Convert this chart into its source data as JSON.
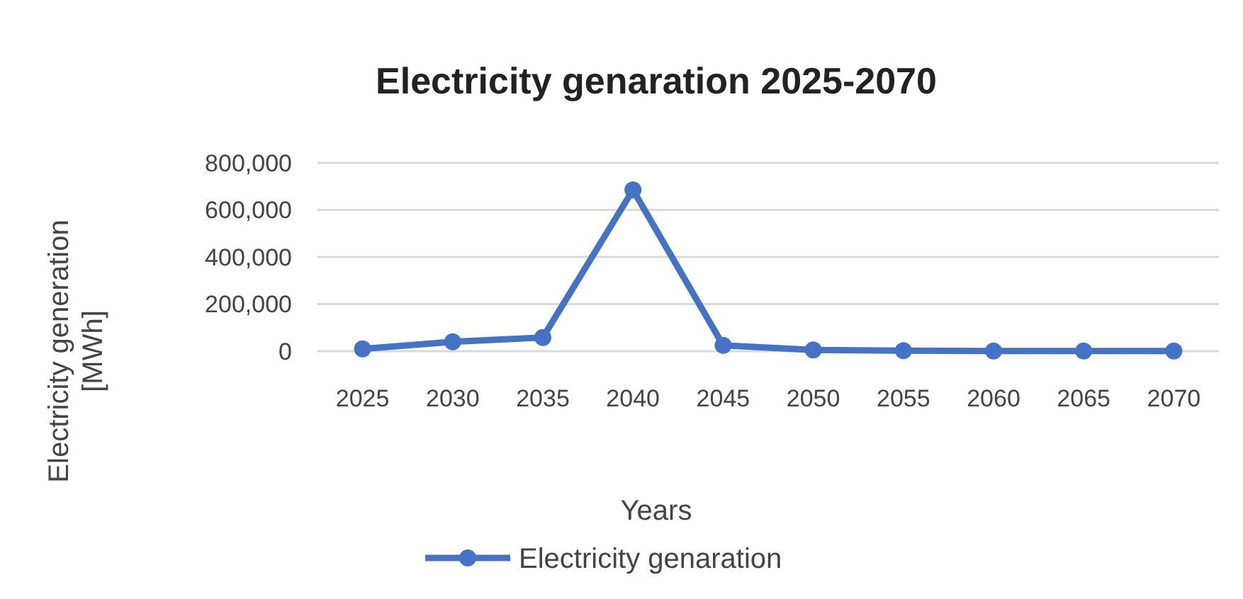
{
  "chart_data": {
    "type": "line",
    "title": "Electricity genaration 2025-2070",
    "xlabel": "Years",
    "ylabel": "Electricity generation [MWh]",
    "categories": [
      "2025",
      "2030",
      "2035",
      "2040",
      "2045",
      "2050",
      "2055",
      "2060",
      "2065",
      "2070"
    ],
    "series": [
      {
        "name": "Electricity genaration",
        "color": "#4472c4",
        "values": [
          10000,
          40000,
          58000,
          685000,
          25000,
          5000,
          2000,
          1000,
          1000,
          1000
        ]
      }
    ],
    "ylim": [
      0,
      800000
    ],
    "yticks": [
      {
        "value": 0,
        "label": "0"
      },
      {
        "value": 200000,
        "label": "200,000"
      },
      {
        "value": 400000,
        "label": "400,000"
      },
      {
        "value": 600000,
        "label": "600,000"
      },
      {
        "value": 800000,
        "label": "800,000"
      }
    ],
    "grid": "y",
    "legend": "bottom",
    "marker": "circle"
  }
}
